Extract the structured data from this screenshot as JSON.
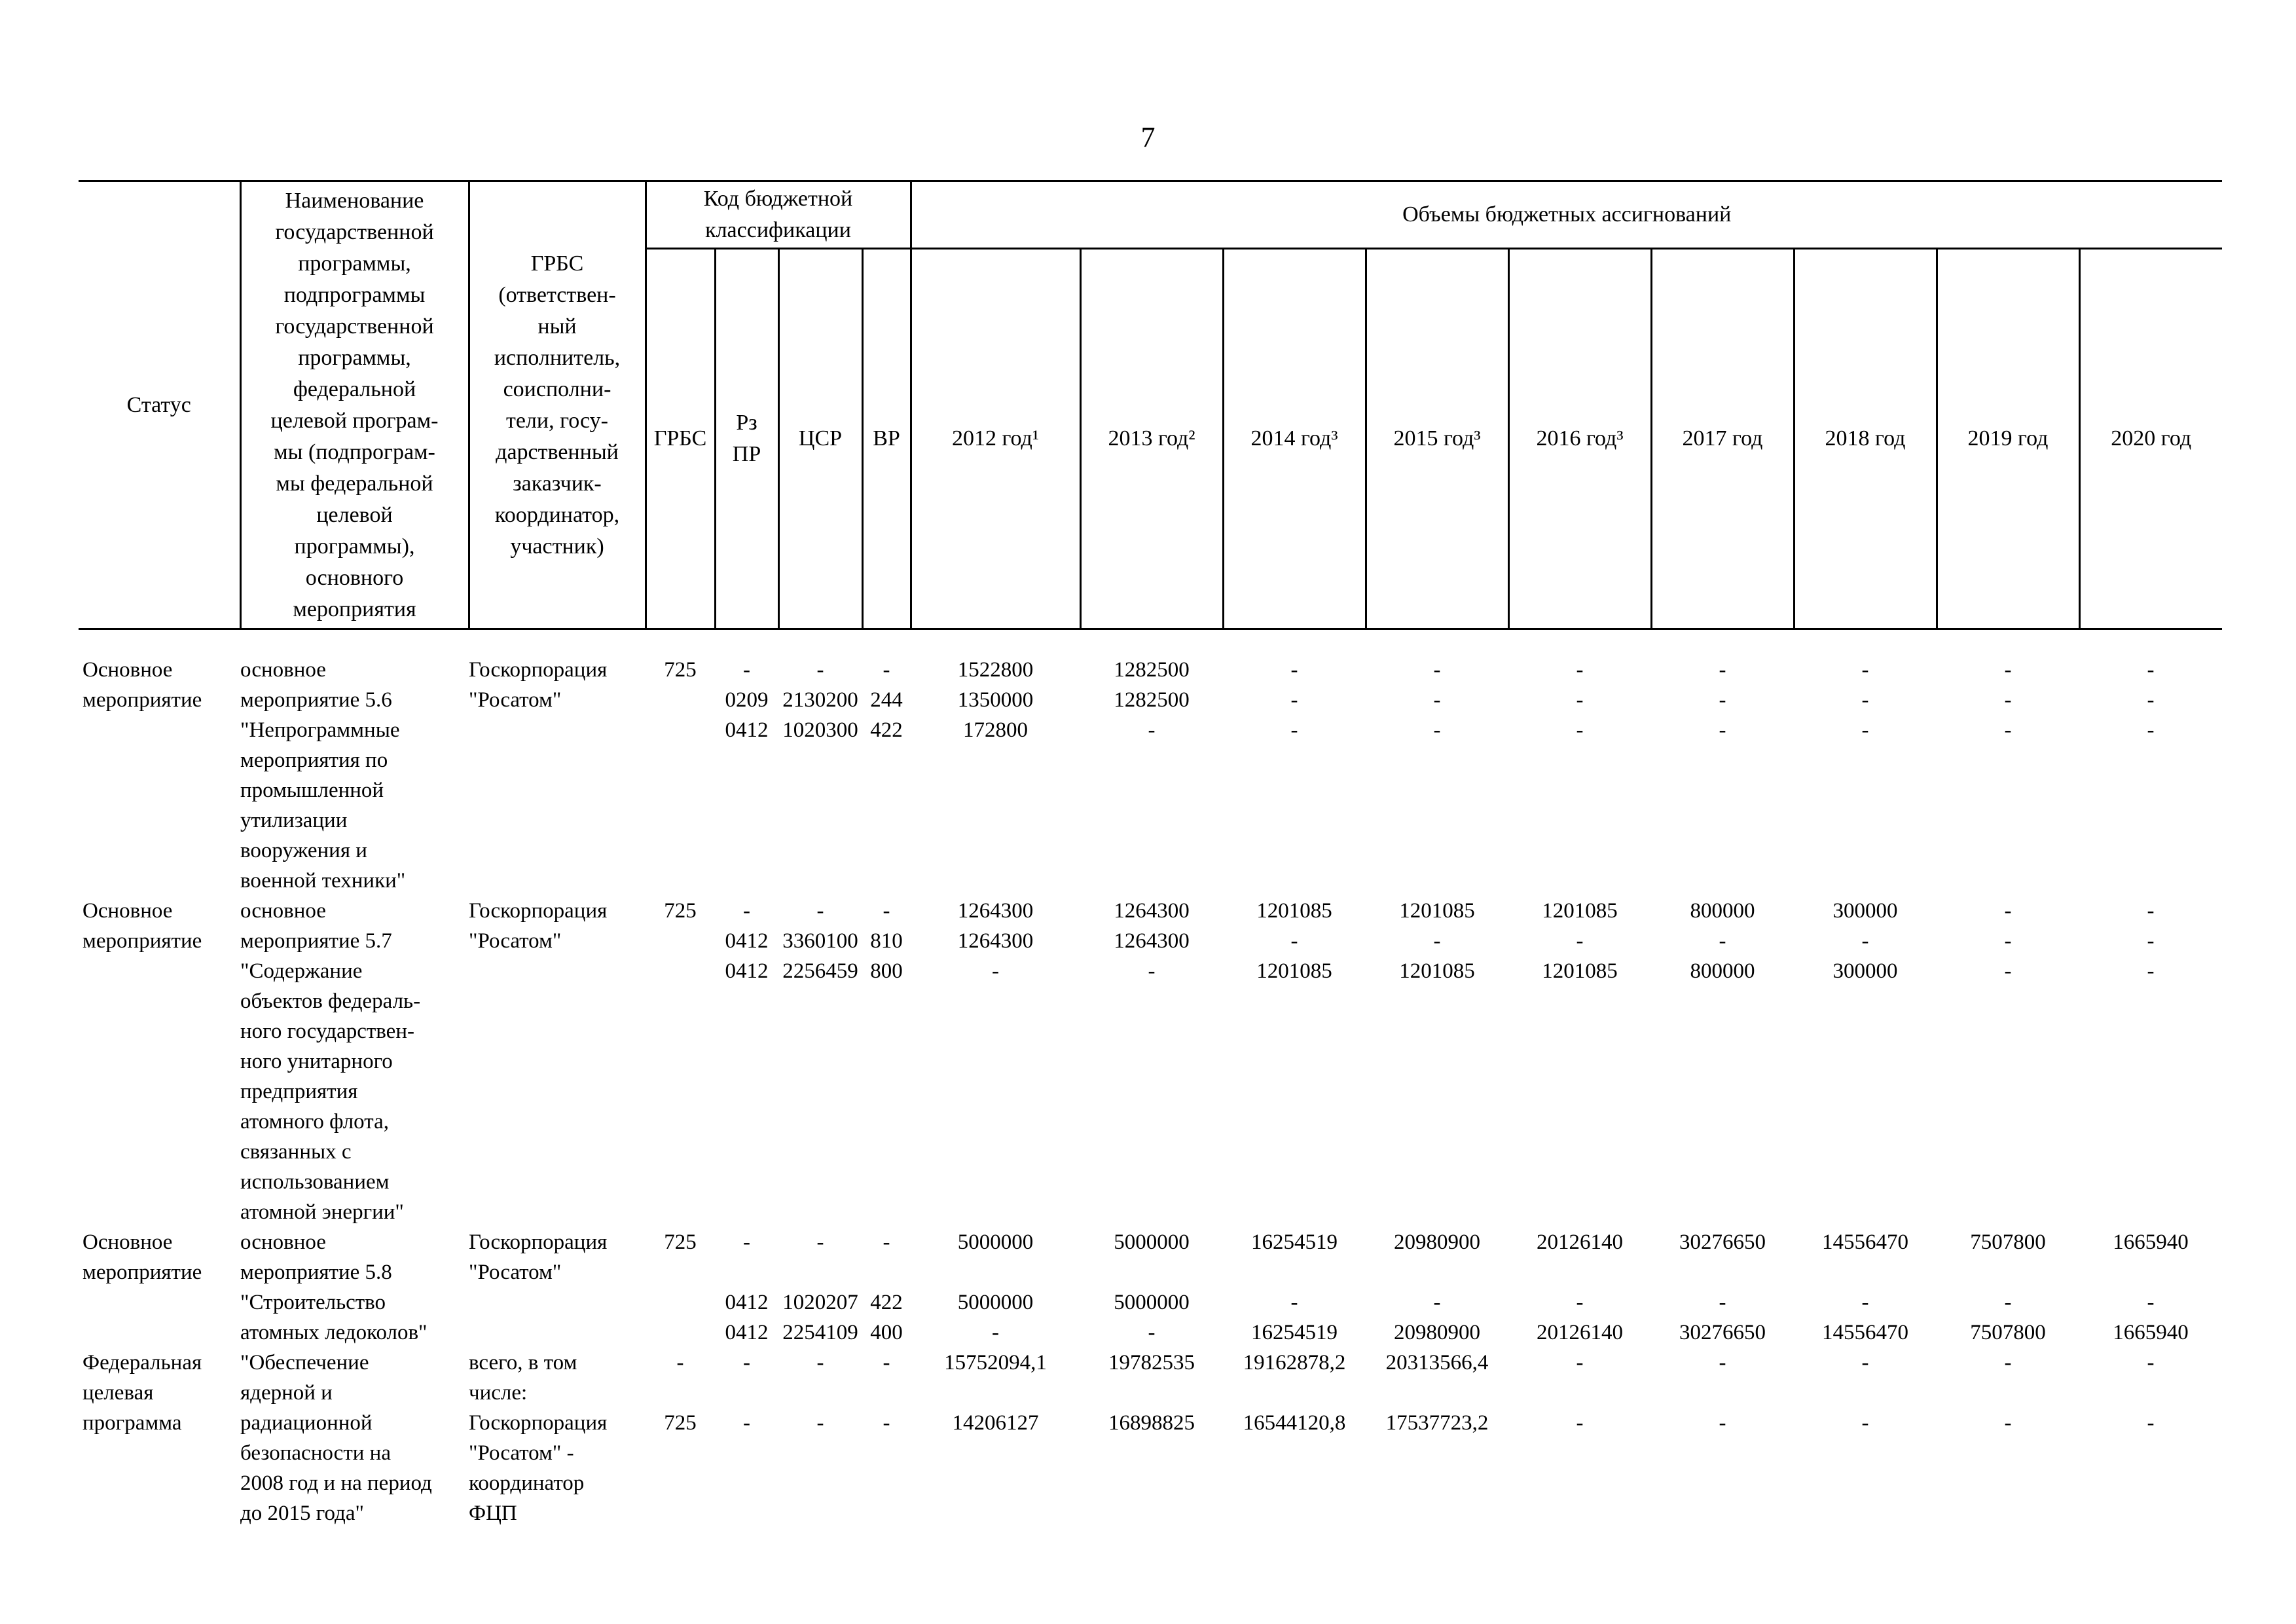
{
  "page": {
    "number": "7"
  },
  "table": {
    "header": {
      "status": "Статус",
      "name": "Наименование\nгосударственной\nпрограммы,\nподпрограммы\nгосударственной\nпрограммы,\nфедеральной\nцелевой програм-\nмы (подпрограм-\nмы федеральной\nцелевой\nпрограммы),\nосновного\nмероприятия",
      "executor": "ГРБС\n(ответствен-\nный\nисполнитель,\nсоисполни-\nтели, госу-\nдарственный\nзаказчик-\nкоординатор,\nучастник)",
      "budget_code": "Код бюджетной\nклассификации",
      "volumes": "Объемы бюджетных ассигнований",
      "code_cols": [
        "ГРБС",
        "Рз\nПР",
        "ЦСР",
        "ВР"
      ],
      "years": [
        "2012 год¹",
        "2013 год²",
        "2014 год³",
        "2015 год³",
        "2016 год³",
        "2017 год",
        "2018 год",
        "2019 год",
        "2020 год"
      ]
    },
    "rows": [
      {
        "status": "Основное\nмероприятие",
        "name": "основное\nмероприятие 5.6\n\"Непрограммные\nмероприятия по\nпромышленной\nутилизации\nвооружения и\nвоенной техники\"",
        "executor": "Госкорпорация\n\"Росатом\"",
        "lines": [
          {
            "at": 0,
            "grbs": "725",
            "rz": "-",
            "csr": "-",
            "vr": "-",
            "years": [
              "1522800",
              "1282500",
              "-",
              "-",
              "-",
              "-",
              "-",
              "-",
              "-"
            ]
          },
          {
            "at": 1,
            "grbs": "",
            "rz": "0209",
            "csr": "2130200",
            "vr": "244",
            "years": [
              "1350000",
              "1282500",
              "-",
              "-",
              "-",
              "-",
              "-",
              "-",
              "-"
            ]
          },
          {
            "at": 2,
            "grbs": "",
            "rz": "0412",
            "csr": "1020300",
            "vr": "422",
            "years": [
              "172800",
              "-",
              "-",
              "-",
              "-",
              "-",
              "-",
              "-",
              "-"
            ]
          }
        ]
      },
      {
        "status": "Основное\nмероприятие",
        "name": "основное\nмероприятие 5.7\n\"Содержание\nобъектов федераль-\nного государствен-\nного унитарного\nпредприятия\nатомного флота,\nсвязанных с\nиспользованием\nатомной энергии\"",
        "executor": "Госкорпорация\n\"Росатом\"",
        "lines": [
          {
            "at": 0,
            "grbs": "725",
            "rz": "-",
            "csr": "-",
            "vr": "-",
            "years": [
              "1264300",
              "1264300",
              "1201085",
              "1201085",
              "1201085",
              "800000",
              "300000",
              "-",
              "-"
            ]
          },
          {
            "at": 1,
            "grbs": "",
            "rz": "0412",
            "csr": "3360100",
            "vr": "810",
            "years": [
              "1264300",
              "1264300",
              "-",
              "-",
              "-",
              "-",
              "-",
              "-",
              "-"
            ]
          },
          {
            "at": 2,
            "grbs": "",
            "rz": "0412",
            "csr": "2256459",
            "vr": "800",
            "years": [
              "-",
              "-",
              "1201085",
              "1201085",
              "1201085",
              "800000",
              "300000",
              "-",
              "-"
            ]
          }
        ]
      },
      {
        "status": "Основное\nмероприятие",
        "name": "основное\nмероприятие 5.8\n\"Строительство\nатомных ледоколов\"",
        "executor": "Госкорпорация\n\"Росатом\"",
        "lines": [
          {
            "at": 0,
            "grbs": "725",
            "rz": "-",
            "csr": "-",
            "vr": "-",
            "years": [
              "5000000",
              "5000000",
              "16254519",
              "20980900",
              "20126140",
              "30276650",
              "14556470",
              "7507800",
              "1665940"
            ]
          },
          {
            "at": 2,
            "grbs": "",
            "rz": "0412",
            "csr": "1020207",
            "vr": "422",
            "years": [
              "5000000",
              "5000000",
              "-",
              "-",
              "-",
              "-",
              "-",
              "-",
              "-"
            ]
          },
          {
            "at": 3,
            "grbs": "",
            "rz": "0412",
            "csr": "2254109",
            "vr": "400",
            "years": [
              "-",
              "-",
              "16254519",
              "20980900",
              "20126140",
              "30276650",
              "14556470",
              "7507800",
              "1665940"
            ]
          }
        ]
      },
      {
        "status": "Федеральная\nцелевая\nпрограмма",
        "name": "\"Обеспечение\nядерной и\nрадиационной\nбезопасности на\n2008 год и на период\nдо 2015 года\"",
        "executor": "всего, в том\nчисле:\nГоскорпорация\n\"Росатом\" -\nкоординатор\nФЦП",
        "lines": [
          {
            "at": 0,
            "grbs": "-",
            "rz": "-",
            "csr": "-",
            "vr": "-",
            "years": [
              "15752094,1",
              "19782535",
              "19162878,2",
              "20313566,4",
              "-",
              "-",
              "-",
              "-",
              "-"
            ]
          },
          {
            "at": 2,
            "grbs": "725",
            "rz": "-",
            "csr": "-",
            "vr": "-",
            "years": [
              "14206127",
              "16898825",
              "16544120,8",
              "17537723,2",
              "-",
              "-",
              "-",
              "-",
              "-"
            ]
          }
        ]
      }
    ]
  }
}
